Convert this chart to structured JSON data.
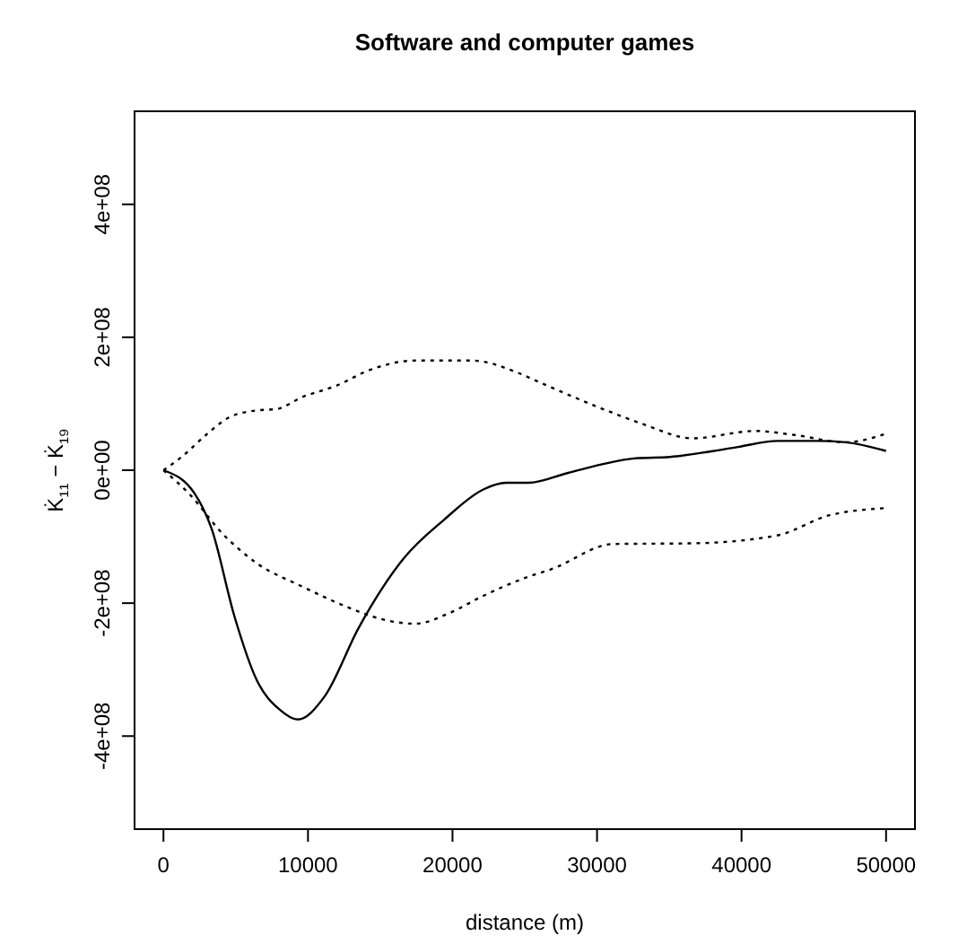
{
  "chart_data": {
    "type": "line",
    "title": "Software and computer games",
    "xlabel": "distance (m)",
    "ylabel": "K̇₁₁ − K̇₁₉",
    "xlim": [
      -2000,
      52000
    ],
    "ylim": [
      -540000000,
      540000000
    ],
    "xticks": [
      0,
      10000,
      20000,
      30000,
      40000,
      50000
    ],
    "yticks": [
      {
        "value": -400000000,
        "label": "-4e+08"
      },
      {
        "value": -200000000,
        "label": "-2e+08"
      },
      {
        "value": 0,
        "label": "0e+00"
      },
      {
        "value": 200000000,
        "label": "2e+08"
      },
      {
        "value": 400000000,
        "label": "4e+08"
      }
    ],
    "grid": false,
    "marker": "none",
    "series": [
      {
        "color": "#000000",
        "line_style": "solid",
        "x": [
          0,
          2150,
          3330,
          4900,
          6460,
          8030,
          9280,
          11160,
          13510,
          16650,
          19390,
          22130,
          23700,
          25260,
          28000,
          30360,
          32700,
          35050,
          37800,
          39750,
          42500,
          45240,
          47200,
          50000
        ],
        "values": [
          0,
          -35000000,
          -88000000,
          -219000000,
          -316000000,
          -360000000,
          -375000000,
          -340000000,
          -237000000,
          -132000000,
          -75000000,
          -29000000,
          -19000000,
          -19000000,
          -4000000,
          9000000,
          18000000,
          20000000,
          28000000,
          35000000,
          44000000,
          44000000,
          42000000,
          29000000
        ]
      },
      {
        "color": "#000000",
        "line_style": "dotted",
        "x": [
          0,
          1370,
          2940,
          4500,
          6460,
          7830,
          9600,
          11950,
          14300,
          17430,
          21350,
          24480,
          26050,
          29960,
          33100,
          36620,
          40930,
          43670,
          47200,
          50000
        ],
        "values": [
          0,
          22000000,
          53000000,
          79000000,
          90000000,
          92000000,
          110000000,
          127000000,
          151000000,
          165000000,
          165000000,
          147000000,
          132000000,
          96000000,
          70000000,
          48000000,
          59000000,
          53000000,
          42000000,
          55000000
        ]
      },
      {
        "color": "#000000",
        "line_style": "dotted",
        "x": [
          0,
          1760,
          4110,
          6460,
          9600,
          12730,
          15080,
          17430,
          19780,
          22130,
          25260,
          26830,
          31140,
          36620,
          42500,
          46030,
          50000
        ],
        "values": [
          0,
          -35000000,
          -96000000,
          -140000000,
          -175000000,
          -206000000,
          -224000000,
          -231000000,
          -215000000,
          -189000000,
          -160000000,
          -149000000,
          -111000000,
          -110000000,
          -98000000,
          -68000000,
          -57000000
        ]
      }
    ]
  }
}
